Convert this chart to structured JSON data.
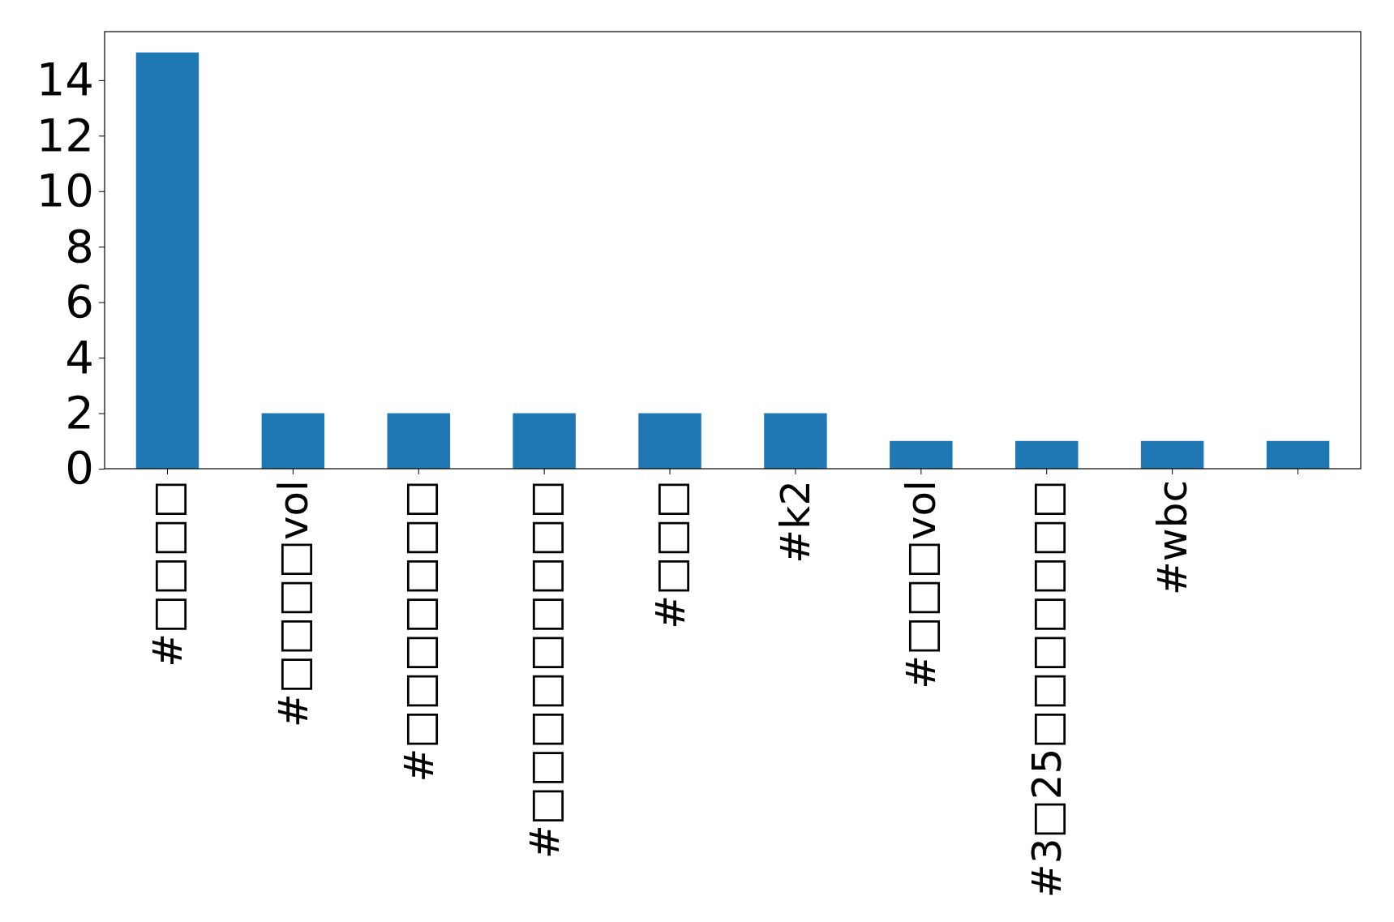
{
  "chart_data": {
    "type": "bar",
    "categories": [
      "#□□□□",
      "#□□□□vol",
      "#□□□□□□□",
      "#□□□□□□□□□",
      "#□□□",
      "#k2",
      "#□□□vol",
      "#3□25□□□□□□□",
      "#wbc",
      null
    ],
    "values": [
      15,
      2,
      2,
      2,
      2,
      2,
      1,
      1,
      1,
      1
    ],
    "color": "#1f77b4",
    "ylim": [
      0,
      15.75
    ],
    "yticks": [
      0,
      2,
      4,
      6,
      8,
      10,
      12,
      14
    ],
    "grid": false
  }
}
